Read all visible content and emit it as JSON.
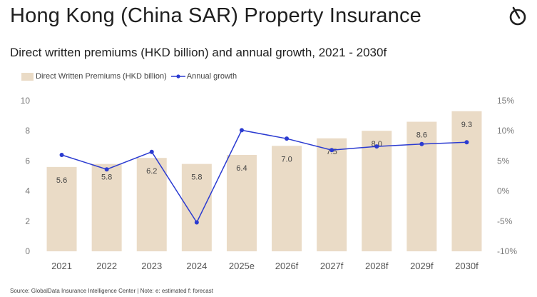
{
  "header": {
    "title": "Hong Kong (China SAR) Property Insurance",
    "subtitle": "Direct written premiums (HKD billion) and annual growth, 2021 - 2030f",
    "logo_icon": "globaldata-logo-icon"
  },
  "footer": {
    "source": "Source: GlobalData Insurance Intelligence Center | Note: e: estimated f: forecast"
  },
  "colors": {
    "bar": "#eadbc6",
    "line": "#2b3bd1"
  },
  "chart_data": {
    "type": "bar",
    "title": "Direct written premiums (HKD billion) and annual growth, 2021 - 2030f",
    "categories": [
      "2021",
      "2022",
      "2023",
      "2024",
      "2025e",
      "2026f",
      "2027f",
      "2028f",
      "2029f",
      "2030f"
    ],
    "series": [
      {
        "name": "Direct Written Premiums (HKD billion)",
        "type": "bar",
        "axis": "left",
        "values": [
          5.6,
          5.8,
          6.2,
          5.8,
          6.4,
          7.0,
          7.5,
          8.0,
          8.6,
          9.3
        ],
        "labels": [
          "5.6",
          "5.8",
          "6.2",
          "5.8",
          "6.4",
          "7.0",
          "7.5",
          "8.0",
          "8.6",
          "9.3"
        ]
      },
      {
        "name": "Annual growth",
        "type": "line",
        "axis": "right",
        "values": [
          6.0,
          3.6,
          6.5,
          -5.2,
          10.1,
          8.7,
          6.8,
          7.4,
          7.8,
          8.1
        ]
      }
    ],
    "y_left": {
      "min": 0,
      "max": 10,
      "ticks": [
        "0",
        "2",
        "4",
        "6",
        "8",
        "10"
      ],
      "tick_values": [
        0,
        2,
        4,
        6,
        8,
        10
      ]
    },
    "y_right": {
      "min": -10,
      "max": 15,
      "ticks": [
        "-10%",
        "-5%",
        "0%",
        "5%",
        "10%",
        "15%"
      ],
      "tick_values": [
        -10,
        -5,
        0,
        5,
        10,
        15
      ]
    },
    "legend": [
      "Direct Written Premiums (HKD billion)",
      "Annual growth"
    ],
    "legend_position": "top-left",
    "grid": false
  }
}
